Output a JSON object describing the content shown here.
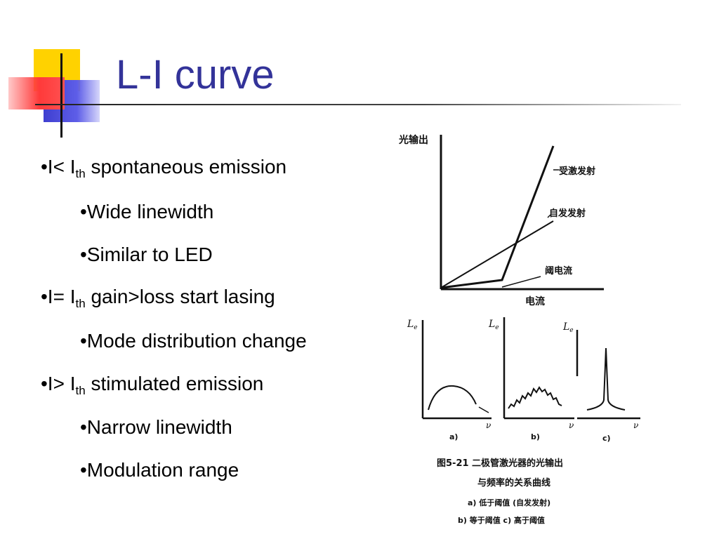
{
  "slide": {
    "title": "L-I curve",
    "bullets": [
      {
        "level": 1,
        "prefix": "•I< I",
        "sub": "th",
        "suffix": " spontaneous emission"
      },
      {
        "level": 2,
        "text": "•Wide linewidth"
      },
      {
        "level": 2,
        "text": "•Similar to LED"
      },
      {
        "level": 1,
        "prefix": "•I= I",
        "sub": "th",
        "suffix": " gain>loss start lasing"
      },
      {
        "level": 2,
        "text": "•Mode distribution change"
      },
      {
        "level": 1,
        "prefix": "•I> I",
        "sub": "th",
        "suffix": " stimulated emission"
      },
      {
        "level": 2,
        "text": "•Narrow linewidth"
      },
      {
        "level": 2,
        "text": "•Modulation range"
      }
    ]
  },
  "figure": {
    "li_plot": {
      "y_axis_label": "光输出",
      "x_axis_label": "电流",
      "stimulated_label": "受激发射",
      "spontaneous_label": "自发发射",
      "threshold_label": "阈电流"
    },
    "spectra": {
      "y_label": "L",
      "y_label_sub": "e",
      "x_label": "ν",
      "panel_labels": [
        "a)",
        "b)",
        "c)"
      ]
    },
    "caption": {
      "line1": "图5-21   二极管激光器的光输出",
      "line2": "与频率的关系曲线",
      "line3": "a) 低于阈值 (自发发射)",
      "line4": "b) 等于阈值    c) 高于阈值"
    }
  }
}
